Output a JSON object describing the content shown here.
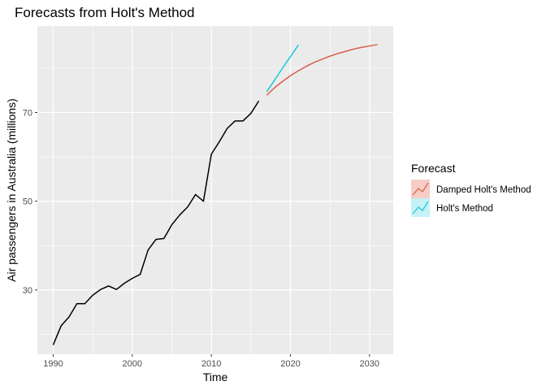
{
  "chart_data": {
    "type": "line",
    "title": "Forecasts from Holt's Method",
    "xlabel": "Time",
    "ylabel": "Air passengers in Australia (millions)",
    "xlim": [
      1988,
      2033
    ],
    "ylim": [
      15.5,
      89.5
    ],
    "x_ticks": [
      1990,
      2000,
      2010,
      2020,
      2030
    ],
    "y_ticks": [
      30,
      50,
      70
    ],
    "grid": true,
    "legend": {
      "title": "Forecast",
      "position": "right",
      "entries": [
        "Damped Holt's Method",
        "Holt's Method"
      ]
    },
    "series": [
      {
        "color": "#000000",
        "x": [
          1990,
          1991,
          1992,
          1993,
          1994,
          1995,
          1996,
          1997,
          1998,
          1999,
          2000,
          2001,
          2002,
          2003,
          2004,
          2005,
          2006,
          2007,
          2008,
          2009,
          2010,
          2011,
          2012,
          2013,
          2014,
          2015,
          2016
        ],
        "y": [
          17.6,
          21.9,
          23.9,
          26.9,
          26.9,
          28.8,
          30.1,
          30.9,
          30.1,
          31.5,
          32.6,
          33.5,
          39.0,
          41.4,
          41.6,
          44.7,
          46.9,
          48.7,
          51.5,
          50.0,
          60.6,
          63.4,
          66.4,
          68.1,
          68.1,
          69.8,
          72.6
        ]
      },
      {
        "name": "Damped Holt's Method",
        "color": "#d95f4a",
        "x": [
          2017,
          2018,
          2019,
          2020,
          2021,
          2022,
          2023,
          2024,
          2025,
          2026,
          2027,
          2028,
          2029,
          2030,
          2031
        ],
        "y": [
          73.9,
          75.6,
          77.0,
          78.3,
          79.4,
          80.4,
          81.3,
          82.0,
          82.7,
          83.3,
          83.8,
          84.3,
          84.7,
          85.0,
          85.3
        ]
      },
      {
        "name": "Holt's Method",
        "color": "#17c9d6",
        "x": [
          2017,
          2018,
          2019,
          2020,
          2021
        ],
        "y": [
          74.7,
          77.3,
          80.0,
          82.6,
          85.2
        ]
      }
    ]
  }
}
